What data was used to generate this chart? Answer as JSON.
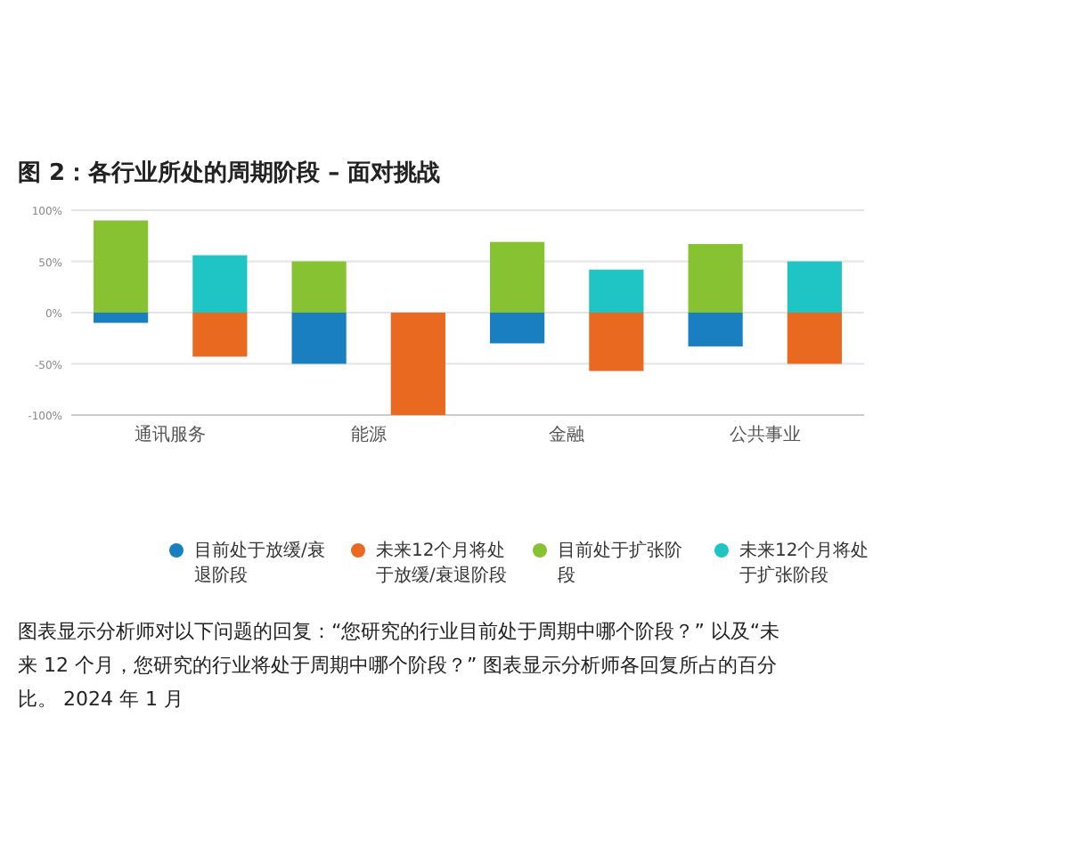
{
  "chart_data": {
    "type": "bar",
    "title": "图 2：各行业所处的周期阶段 – 面对挑战",
    "categories": [
      "通讯服务",
      null,
      "能源",
      null,
      "金融",
      null,
      "公共事业",
      null
    ],
    "stacked": true,
    "series": [
      {
        "name": "目前处于放缓/衰退阶段",
        "color": "#1a7fc1",
        "values": [
          -10,
          null,
          -50,
          null,
          -30,
          null,
          -33,
          null
        ]
      },
      {
        "name": "未来12个月将处于放缓/衰退阶段",
        "color": "#e8691f",
        "values": [
          null,
          -43,
          null,
          -100,
          null,
          -57,
          null,
          -50
        ]
      },
      {
        "name": "目前处于扩张阶段",
        "color": "#86c232",
        "values": [
          90,
          null,
          50,
          null,
          69,
          null,
          67,
          null
        ]
      },
      {
        "name": "未来12个月将处于扩张阶段",
        "color": "#1fc4c4",
        "values": [
          null,
          56,
          null,
          null,
          null,
          42,
          null,
          50
        ]
      }
    ],
    "ylim": [
      -100,
      100
    ],
    "yticks": [
      {
        "value": -100,
        "label": "-100%"
      },
      {
        "value": -50,
        "label": "-50%"
      },
      {
        "value": 0,
        "label": "0%"
      },
      {
        "value": 50,
        "label": "50%"
      },
      {
        "value": 100,
        "label": "100%"
      }
    ],
    "grid": "y",
    "legend": "bottom",
    "annotations": [
      "图表显示分析师对以下问题的回复：“您研究的行业目前处于周期中哪个阶段？” 以及“未来 12 个月，您研究的行业将处于周期中哪个阶段？” 图表显示分析师各回复所占的百分比。 2024 年 1 月"
    ]
  }
}
